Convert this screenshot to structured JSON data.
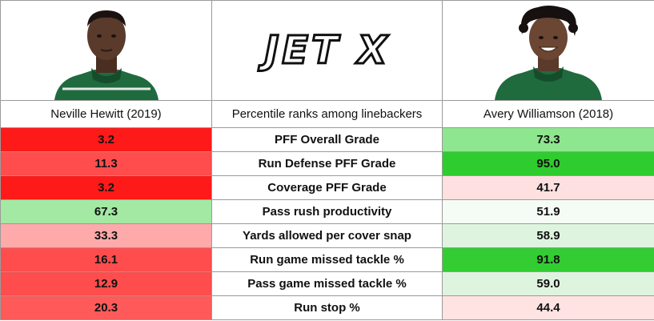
{
  "header": {
    "left_player": "Neville Hewitt (2019)",
    "center_title": "Percentile ranks among linebackers",
    "right_player": "Avery Williamson (2018)",
    "logo_text": "JET X"
  },
  "colors": {
    "deep_red": "#ff1a1a",
    "red": "#ff4d4d",
    "light_red": "#ffaaaa",
    "pale_red": "#ffe0e0",
    "light_green": "#8ee68e",
    "bright_green": "#33cc33",
    "pale_green": "#e0f5e0",
    "very_pale_green": "#f5fcf5"
  },
  "rows": [
    {
      "metric": "PFF Overall Grade",
      "left": "3.2",
      "right": "73.3",
      "left_color": "#ff1a1a",
      "right_color": "#8ee68e"
    },
    {
      "metric": "Run Defense PFF Grade",
      "left": "11.3",
      "right": "95.0",
      "left_color": "#ff4d4d",
      "right_color": "#2ecc2e"
    },
    {
      "metric": "Coverage PFF Grade",
      "left": "3.2",
      "right": "41.7",
      "left_color": "#ff1a1a",
      "right_color": "#ffe0e0"
    },
    {
      "metric": "Pass rush productivity",
      "left": "67.3",
      "right": "51.9",
      "left_color": "#a3e9a3",
      "right_color": "#f5fcf5"
    },
    {
      "metric": "Yards allowed per cover snap",
      "left": "33.3",
      "right": "58.9",
      "left_color": "#ffaaaa",
      "right_color": "#dff4df"
    },
    {
      "metric": "Run game missed tackle %",
      "left": "16.1",
      "right": "91.8",
      "left_color": "#ff4d4d",
      "right_color": "#33cc33"
    },
    {
      "metric": "Pass game missed tackle %",
      "left": "12.9",
      "right": "59.0",
      "left_color": "#ff4d4d",
      "right_color": "#dff4df"
    },
    {
      "metric": "Run stop %",
      "left": "20.3",
      "right": "44.4",
      "left_color": "#ff5a5a",
      "right_color": "#ffe3e3"
    }
  ]
}
